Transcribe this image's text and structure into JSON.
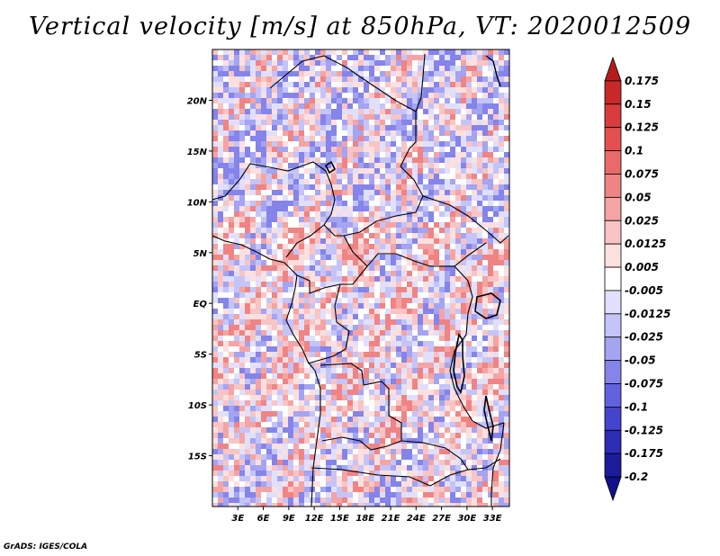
{
  "title": "Vertical velocity [m/s] at 850hPa, VT: 2020012509",
  "credit": "GrADS: IGES/COLA",
  "chart_data": {
    "type": "heatmap",
    "variable": "Vertical velocity",
    "units": "m/s",
    "level": "850hPa",
    "valid_time": "2020012509",
    "lon_range": [
      0,
      35
    ],
    "lat_range": [
      -20,
      25
    ],
    "x_ticks": [
      {
        "value": 3,
        "label": "3E"
      },
      {
        "value": 6,
        "label": "6E"
      },
      {
        "value": 9,
        "label": "9E"
      },
      {
        "value": 12,
        "label": "12E"
      },
      {
        "value": 15,
        "label": "15E"
      },
      {
        "value": 18,
        "label": "18E"
      },
      {
        "value": 21,
        "label": "21E"
      },
      {
        "value": 24,
        "label": "24E"
      },
      {
        "value": 27,
        "label": "27E"
      },
      {
        "value": 30,
        "label": "30E"
      },
      {
        "value": 33,
        "label": "33E"
      }
    ],
    "y_ticks": [
      {
        "value": 20,
        "label": "20N"
      },
      {
        "value": 15,
        "label": "15N"
      },
      {
        "value": 10,
        "label": "10N"
      },
      {
        "value": 5,
        "label": "5N"
      },
      {
        "value": 0,
        "label": "EQ"
      },
      {
        "value": -5,
        "label": "5S"
      },
      {
        "value": -10,
        "label": "10S"
      },
      {
        "value": -15,
        "label": "15S"
      }
    ],
    "colorbar": {
      "labels": [
        "0.175",
        "0.15",
        "0.125",
        "0.1",
        "0.075",
        "0.05",
        "0.025",
        "0.0125",
        "0.005",
        "-0.005",
        "-0.0125",
        "-0.025",
        "-0.05",
        "-0.075",
        "-0.1",
        "-0.125",
        "-0.175",
        "-0.2"
      ],
      "colors": [
        "#b41c1c",
        "#c82828",
        "#d83c3c",
        "#e45050",
        "#ea6a6a",
        "#f08484",
        "#f4a4a4",
        "#f8c4c4",
        "#fce0e0",
        "#ffffff",
        "#e0e0fc",
        "#c4c4f8",
        "#a4a4f2",
        "#8484ea",
        "#6262de",
        "#4444cc",
        "#2c2cb4",
        "#1c1c9a",
        "#10108a"
      ]
    }
  }
}
